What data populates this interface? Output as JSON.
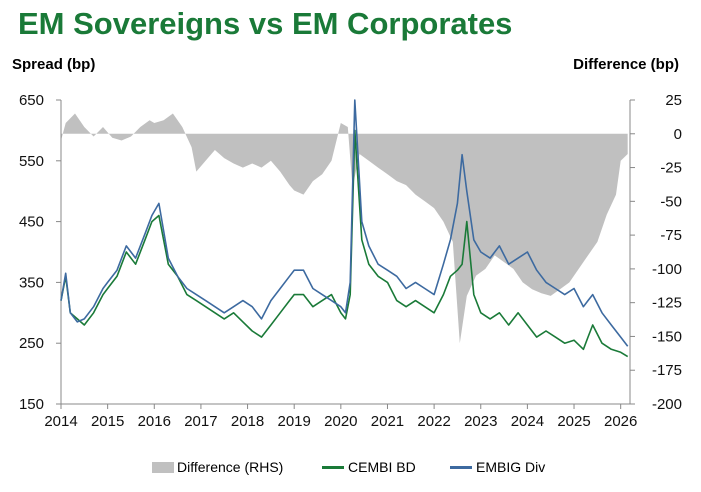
{
  "chart_data": {
    "type": "line",
    "title": "EM Sovereigns vs EM Corporates",
    "ylabel_left": "Spread (bp)",
    "ylabel_right": "Difference (bp)",
    "x_ticks": [
      "2014",
      "2015",
      "2016",
      "2017",
      "2018",
      "2019",
      "2020",
      "2021",
      "2022",
      "2023",
      "2024",
      "2025",
      "2026"
    ],
    "y_left_ticks": [
      650,
      550,
      450,
      350,
      250,
      150
    ],
    "y_right_ticks": [
      25,
      0,
      -25,
      -50,
      -75,
      -100,
      -125,
      -150,
      -175,
      -200
    ],
    "ylim_left": [
      150,
      650
    ],
    "ylim_right": [
      -200,
      25
    ],
    "xlim": [
      2014.0,
      2026.2
    ],
    "legend_position": "bottom",
    "grid": false,
    "series": [
      {
        "name": "Difference (RHS)",
        "kind": "area",
        "axis": "right",
        "color": "#c0c0c0",
        "x": [
          2014.0,
          2014.1,
          2014.3,
          2014.5,
          2014.7,
          2014.9,
          2015.1,
          2015.3,
          2015.5,
          2015.7,
          2015.9,
          2016.0,
          2016.2,
          2016.4,
          2016.6,
          2016.8,
          2016.9,
          2017.1,
          2017.3,
          2017.5,
          2017.7,
          2017.9,
          2018.1,
          2018.3,
          2018.5,
          2018.7,
          2018.9,
          2019.0,
          2019.2,
          2019.4,
          2019.6,
          2019.8,
          2020.0,
          2020.15,
          2020.25,
          2020.4,
          2020.6,
          2020.8,
          2021.0,
          2021.2,
          2021.4,
          2021.6,
          2021.8,
          2022.0,
          2022.2,
          2022.4,
          2022.55,
          2022.7,
          2022.9,
          2023.1,
          2023.3,
          2023.5,
          2023.7,
          2023.9,
          2024.1,
          2024.3,
          2024.5,
          2024.7,
          2024.9,
          2025.1,
          2025.3,
          2025.5,
          2025.7,
          2025.9,
          2026.0,
          2026.15
        ],
        "values": [
          -5,
          8,
          15,
          5,
          -2,
          5,
          -3,
          -5,
          -2,
          5,
          10,
          8,
          10,
          15,
          5,
          -10,
          -28,
          -20,
          -12,
          -18,
          -22,
          -25,
          -22,
          -25,
          -20,
          -28,
          -38,
          -42,
          -45,
          -35,
          -30,
          -20,
          8,
          5,
          -40,
          -15,
          -20,
          -25,
          -30,
          -35,
          -38,
          -45,
          -50,
          -55,
          -65,
          -80,
          -155,
          -120,
          -105,
          -100,
          -90,
          -95,
          -100,
          -110,
          -115,
          -118,
          -120,
          -115,
          -110,
          -100,
          -90,
          -80,
          -60,
          -45,
          -20,
          -15
        ]
      },
      {
        "name": "CEMBI BD",
        "kind": "line",
        "axis": "left",
        "color": "#1a7a38",
        "x": [
          2014.0,
          2014.1,
          2014.2,
          2014.35,
          2014.5,
          2014.7,
          2014.9,
          2015.0,
          2015.2,
          2015.4,
          2015.6,
          2015.8,
          2015.95,
          2016.1,
          2016.3,
          2016.5,
          2016.7,
          2016.9,
          2017.1,
          2017.3,
          2017.5,
          2017.7,
          2017.9,
          2018.1,
          2018.3,
          2018.5,
          2018.7,
          2018.9,
          2019.0,
          2019.2,
          2019.4,
          2019.6,
          2019.8,
          2020.0,
          2020.1,
          2020.2,
          2020.3,
          2020.45,
          2020.6,
          2020.8,
          2021.0,
          2021.2,
          2021.4,
          2021.6,
          2021.8,
          2022.0,
          2022.2,
          2022.35,
          2022.5,
          2022.6,
          2022.7,
          2022.85,
          2023.0,
          2023.2,
          2023.4,
          2023.6,
          2023.8,
          2024.0,
          2024.2,
          2024.4,
          2024.6,
          2024.8,
          2025.0,
          2025.2,
          2025.3,
          2025.4,
          2025.6,
          2025.8,
          2026.0,
          2026.15
        ],
        "values": [
          320,
          360,
          300,
          290,
          280,
          300,
          330,
          340,
          360,
          400,
          380,
          420,
          450,
          460,
          380,
          360,
          330,
          320,
          310,
          300,
          290,
          300,
          285,
          270,
          260,
          280,
          300,
          320,
          330,
          330,
          310,
          320,
          330,
          300,
          290,
          330,
          600,
          420,
          380,
          360,
          350,
          320,
          310,
          320,
          310,
          300,
          330,
          360,
          370,
          380,
          450,
          330,
          300,
          290,
          300,
          280,
          300,
          280,
          260,
          270,
          260,
          250,
          255,
          240,
          260,
          280,
          250,
          240,
          235,
          228
        ]
      },
      {
        "name": "EMBIG Div",
        "kind": "line",
        "axis": "left",
        "color": "#3d6aa0",
        "x": [
          2014.0,
          2014.1,
          2014.2,
          2014.35,
          2014.5,
          2014.7,
          2014.9,
          2015.0,
          2015.2,
          2015.4,
          2015.6,
          2015.8,
          2015.95,
          2016.1,
          2016.3,
          2016.5,
          2016.7,
          2016.9,
          2017.1,
          2017.3,
          2017.5,
          2017.7,
          2017.9,
          2018.1,
          2018.3,
          2018.5,
          2018.7,
          2018.9,
          2019.0,
          2019.2,
          2019.4,
          2019.6,
          2019.8,
          2020.0,
          2020.1,
          2020.2,
          2020.3,
          2020.45,
          2020.6,
          2020.8,
          2021.0,
          2021.2,
          2021.4,
          2021.6,
          2021.8,
          2022.0,
          2022.2,
          2022.35,
          2022.5,
          2022.6,
          2022.7,
          2022.85,
          2023.0,
          2023.2,
          2023.4,
          2023.6,
          2023.8,
          2024.0,
          2024.2,
          2024.4,
          2024.6,
          2024.8,
          2025.0,
          2025.2,
          2025.3,
          2025.4,
          2025.6,
          2025.8,
          2026.0,
          2026.15
        ],
        "values": [
          320,
          365,
          300,
          285,
          290,
          310,
          340,
          350,
          370,
          410,
          390,
          430,
          460,
          480,
          390,
          360,
          340,
          330,
          320,
          310,
          300,
          310,
          320,
          310,
          290,
          320,
          340,
          360,
          370,
          370,
          340,
          330,
          320,
          310,
          300,
          350,
          650,
          450,
          410,
          380,
          370,
          360,
          340,
          350,
          340,
          330,
          380,
          420,
          480,
          560,
          500,
          420,
          400,
          390,
          410,
          380,
          390,
          400,
          370,
          350,
          340,
          330,
          340,
          310,
          320,
          330,
          300,
          280,
          260,
          245
        ]
      }
    ]
  },
  "legend": {
    "difference_label": "Difference (RHS)",
    "cembi_label": "CEMBI BD",
    "embig_label": "EMBIG Div"
  }
}
